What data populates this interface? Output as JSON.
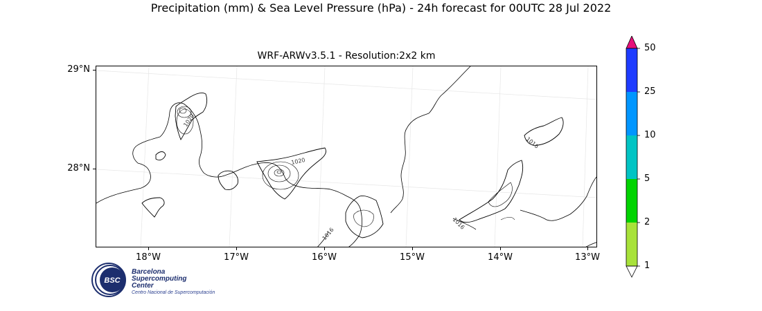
{
  "title": "Precipitation (mm) & Sea Level Pressure (hPa) - 24h forecast for 00UTC 28 Jul 2022",
  "subtitle": "WRF-ARWv3.5.1 - Resolution:2x2 km",
  "lat_labels": [
    "29°N",
    "28°N"
  ],
  "lon_labels": [
    "18°W",
    "17°W",
    "16°W",
    "15°W",
    "14°W",
    "13°W"
  ],
  "contour_labels": [
    "1020",
    "1020",
    "1016",
    "1016",
    "1016"
  ],
  "colorbar": {
    "ticks": [
      "1",
      "2",
      "5",
      "10",
      "25",
      "50"
    ],
    "colors": [
      "#a8e23a",
      "#00d400",
      "#00c4c4",
      "#0096ff",
      "#1e3cff",
      "#e6117a"
    ],
    "under_color": "#ffffff"
  },
  "logo": {
    "line1": "Barcelona",
    "line2": "Supercomputing",
    "line3": "Center",
    "tagline": "Centro Nacional de Supercomputación",
    "badge": "BSC"
  }
}
